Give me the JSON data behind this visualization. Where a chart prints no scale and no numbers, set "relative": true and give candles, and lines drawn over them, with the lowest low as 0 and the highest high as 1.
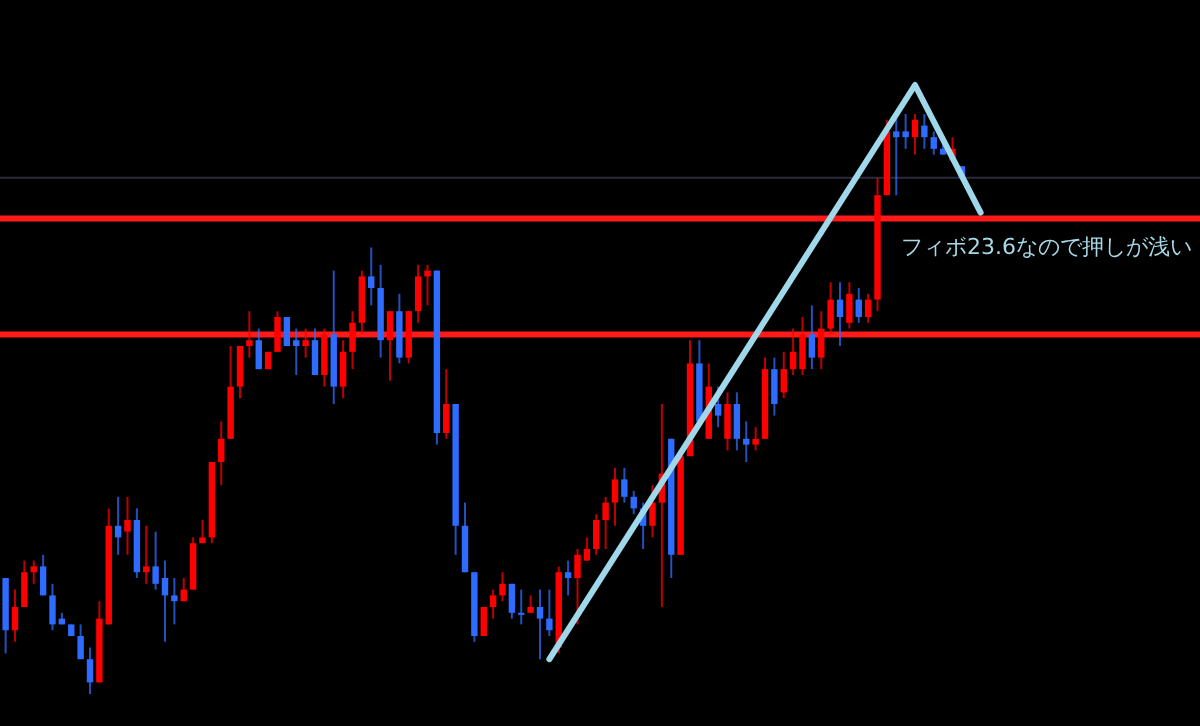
{
  "chart_data": {
    "type": "candlestick",
    "relative": true,
    "categories": [
      null,
      null,
      null,
      null,
      null,
      null,
      null,
      null,
      null,
      null,
      null,
      null,
      null,
      null,
      null,
      null,
      null,
      null,
      null,
      null,
      null,
      null,
      null,
      null,
      null,
      null,
      null,
      null,
      null,
      null,
      null,
      null,
      null,
      null,
      null,
      null,
      null,
      null,
      null,
      null,
      null,
      null,
      null,
      null,
      null,
      null,
      null,
      null,
      null,
      null,
      null,
      null,
      null,
      null,
      null,
      null,
      null,
      null,
      null,
      null,
      null,
      null,
      null,
      null,
      null,
      null,
      null,
      null,
      null,
      null,
      null,
      null,
      null,
      null,
      null,
      null,
      null,
      null,
      null,
      null,
      null,
      null,
      null,
      null,
      null,
      null,
      null,
      null,
      null,
      null,
      null,
      null,
      null,
      null,
      null,
      null,
      null,
      null,
      null,
      null,
      null,
      null,
      null,
      null,
      null,
      null,
      null,
      null,
      null,
      null,
      null,
      null,
      null,
      null,
      null,
      null,
      null,
      null,
      null,
      null,
      null,
      null,
      null,
      null,
      null,
      null,
      null,
      null
    ],
    "ohlc": [
      [
        0.2,
        0.2,
        0.07,
        0.11
      ],
      [
        0.11,
        0.18,
        0.09,
        0.15
      ],
      [
        0.15,
        0.23,
        0.15,
        0.21
      ],
      [
        0.21,
        0.23,
        0.19,
        0.22
      ],
      [
        0.22,
        0.24,
        0.17,
        0.17
      ],
      [
        0.17,
        0.19,
        0.11,
        0.12
      ],
      [
        0.13,
        0.14,
        0.12,
        0.12
      ],
      [
        0.12,
        0.12,
        0.1,
        0.1
      ],
      [
        0.1,
        0.12,
        0.06,
        0.06
      ],
      [
        0.06,
        0.08,
        0,
        0.02
      ],
      [
        0.02,
        0.16,
        0.02,
        0.13
      ],
      [
        0.12,
        0.32,
        0.12,
        0.29
      ],
      [
        0.29,
        0.34,
        0.24,
        0.27
      ],
      [
        0.28,
        0.34,
        0.24,
        0.3
      ],
      [
        0.3,
        0.32,
        0.2,
        0.21
      ],
      [
        0.21,
        0.29,
        0.19,
        0.22
      ],
      [
        0.22,
        0.28,
        0.18,
        0.19
      ],
      [
        0.2,
        0.23,
        0.09,
        0.17
      ],
      [
        0.17,
        0.2,
        0.12,
        0.16
      ],
      [
        0.16,
        0.2,
        0.16,
        0.18
      ],
      [
        0.18,
        0.27,
        0.18,
        0.26
      ],
      [
        0.26,
        0.3,
        0.26,
        0.27
      ],
      [
        0.27,
        0.4,
        0.26,
        0.4
      ],
      [
        0.4,
        0.47,
        0.36,
        0.44
      ],
      [
        0.44,
        0.6,
        0.44,
        0.53
      ],
      [
        0.53,
        0.6,
        0.51,
        0.6
      ],
      [
        0.6,
        0.66,
        0.58,
        0.61
      ],
      [
        0.61,
        0.63,
        0.56,
        0.56
      ],
      [
        0.56,
        0.59,
        0.56,
        0.59
      ],
      [
        0.59,
        0.66,
        0.59,
        0.65
      ],
      [
        0.65,
        0.65,
        0.6,
        0.6
      ],
      [
        0.61,
        0.63,
        0.55,
        0.6
      ],
      [
        0.6,
        0.63,
        0.58,
        0.61
      ],
      [
        0.61,
        0.63,
        0.55,
        0.55
      ],
      [
        0.55,
        0.63,
        0.53,
        0.62
      ],
      [
        0.62,
        0.73,
        0.5,
        0.53
      ],
      [
        0.53,
        0.61,
        0.51,
        0.59
      ],
      [
        0.59,
        0.66,
        0.56,
        0.64
      ],
      [
        0.64,
        0.73,
        0.62,
        0.72
      ],
      [
        0.72,
        0.77,
        0.67,
        0.7
      ],
      [
        0.7,
        0.74,
        0.58,
        0.61
      ],
      [
        0.61,
        0.66,
        0.54,
        0.66
      ],
      [
        0.66,
        0.69,
        0.57,
        0.58
      ],
      [
        0.58,
        0.66,
        0.57,
        0.66
      ],
      [
        0.66,
        0.74,
        0.64,
        0.72
      ],
      [
        0.72,
        0.74,
        0.67,
        0.73
      ],
      [
        0.73,
        0.73,
        0.43,
        0.45
      ],
      [
        0.45,
        0.56,
        0.44,
        0.5
      ],
      [
        0.5,
        0.5,
        0.24,
        0.29
      ],
      [
        0.29,
        0.33,
        0.21,
        0.21
      ],
      [
        0.21,
        0.21,
        0.09,
        0.1
      ],
      [
        0.1,
        0.15,
        0.1,
        0.15
      ],
      [
        0.15,
        0.18,
        0.13,
        0.17
      ],
      [
        0.17,
        0.21,
        0.16,
        0.19
      ],
      [
        0.19,
        0.19,
        0.13,
        0.14
      ],
      [
        0.14,
        0.18,
        0.12,
        0.14
      ],
      [
        0.14,
        0.17,
        0.14,
        0.15
      ],
      [
        0.15,
        0.18,
        0.06,
        0.13
      ],
      [
        0.13,
        0.18,
        0.1,
        0.11
      ],
      [
        0.08,
        0.22,
        0.07,
        0.21
      ],
      [
        0.21,
        0.23,
        0.17,
        0.2
      ],
      [
        0.2,
        0.25,
        0.12,
        0.24
      ],
      [
        0.23,
        0.27,
        0.23,
        0.25
      ],
      [
        0.25,
        0.31,
        0.24,
        0.3
      ],
      [
        0.3,
        0.34,
        0.25,
        0.33
      ],
      [
        0.33,
        0.39,
        0.29,
        0.37
      ],
      [
        0.37,
        0.39,
        0.33,
        0.34
      ],
      [
        0.34,
        0.35,
        0.31,
        0.32
      ],
      [
        0.32,
        0.33,
        0.25,
        0.29
      ],
      [
        0.29,
        0.36,
        0.27,
        0.33
      ],
      [
        0.33,
        0.5,
        0.15,
        0.38
      ],
      [
        0.44,
        0.44,
        0.2,
        0.24
      ],
      [
        0.24,
        0.42,
        0.24,
        0.41
      ],
      [
        0.41,
        0.61,
        0.41,
        0.57
      ],
      [
        0.57,
        0.61,
        0.47,
        0.47
      ],
      [
        0.44,
        0.57,
        0.44,
        0.53
      ],
      [
        0.5,
        0.53,
        0.46,
        0.48
      ],
      [
        0.44,
        0.52,
        0.42,
        0.5
      ],
      [
        0.5,
        0.52,
        0.42,
        0.44
      ],
      [
        0.44,
        0.47,
        0.4,
        0.43
      ],
      [
        0.43,
        0.46,
        0.42,
        0.44
      ],
      [
        0.44,
        0.58,
        0.44,
        0.56
      ],
      [
        0.56,
        0.58,
        0.48,
        0.5
      ],
      [
        0.52,
        0.59,
        0.51,
        0.56
      ],
      [
        0.56,
        0.63,
        0.55,
        0.59
      ],
      [
        0.56,
        0.65,
        0.55,
        0.62
      ],
      [
        0.62,
        0.67,
        0.56,
        0.58
      ],
      [
        0.58,
        0.66,
        0.56,
        0.63
      ],
      [
        0.63,
        0.71,
        0.62,
        0.68
      ],
      [
        0.68,
        0.71,
        0.6,
        0.65
      ],
      [
        0.64,
        0.71,
        0.63,
        0.69
      ],
      [
        0.68,
        0.7,
        0.64,
        0.65
      ],
      [
        0.65,
        0.69,
        0.64,
        0.68
      ],
      [
        0.68,
        0.89,
        0.66,
        0.86
      ],
      [
        0.86,
        0.99,
        0.86,
        0.97
      ],
      [
        0.97,
        1,
        0.86,
        0.96
      ],
      [
        0.97,
        1,
        0.94,
        0.96
      ],
      [
        0.96,
        1,
        0.93,
        0.99
      ],
      [
        0.98,
        1,
        0.94,
        0.96
      ],
      [
        0.96,
        0.97,
        0.93,
        0.94
      ],
      [
        0.94,
        0.95,
        0.93,
        0.93
      ],
      [
        0.92,
        0.96,
        0.92,
        0.94
      ],
      [
        0.91,
        0.91,
        0.89,
        0.89
      ],
      null,
      null,
      null,
      null,
      null,
      null,
      null,
      null,
      null,
      null,
      null,
      null,
      null,
      null,
      null,
      null,
      null,
      null,
      null,
      null,
      null,
      null,
      null,
      null,
      null
    ],
    "colors": [
      "#2d6cff",
      "#ff0000",
      "#ff0000",
      "#ff0000",
      "#2d6cff",
      "#2d6cff",
      "#2d6cff",
      "#2d6cff",
      "#2d6cff",
      "#2d6cff",
      "#ff0000",
      "#ff0000",
      "#2d6cff",
      "#ff0000",
      "#2d6cff",
      "#ff0000",
      "#2d6cff",
      "#2d6cff",
      "#2d6cff",
      "#ff0000",
      "#ff0000",
      "#ff0000",
      "#ff0000",
      "#ff0000",
      "#ff0000",
      "#ff0000",
      "#ff0000",
      "#2d6cff",
      "#ff0000",
      "#ff0000",
      "#2d6cff",
      "#2d6cff",
      "#ff0000",
      "#2d6cff",
      "#ff0000",
      "#2d6cff",
      "#ff0000",
      "#ff0000",
      "#ff0000",
      "#2d6cff",
      "#2d6cff",
      "#ff0000",
      "#2d6cff",
      "#ff0000",
      "#ff0000",
      "#ff0000",
      "#2d6cff",
      "#ff0000",
      "#2d6cff",
      "#2d6cff",
      "#2d6cff",
      "#ff0000",
      "#ff0000",
      "#ff0000",
      "#2d6cff",
      "#2d6cff",
      "#ff0000",
      "#2d6cff",
      "#2d6cff",
      "#ff0000",
      "#2d6cff",
      "#ff0000",
      "#ff0000",
      "#ff0000",
      "#ff0000",
      "#ff0000",
      "#2d6cff",
      "#2d6cff",
      "#2d6cff",
      "#ff0000",
      "#ff0000",
      "#2d6cff",
      "#ff0000",
      "#ff0000",
      "#2d6cff",
      "#ff0000",
      "#2d6cff",
      "#ff0000",
      "#2d6cff",
      "#2d6cff",
      "#ff0000",
      "#ff0000",
      "#2d6cff",
      "#ff0000",
      "#ff0000",
      "#ff0000",
      "#2d6cff",
      "#ff0000",
      "#ff0000",
      "#2d6cff",
      "#ff0000",
      "#2d6cff",
      "#ff0000",
      "#ff0000",
      "#ff0000",
      "#2d6cff",
      "#2d6cff",
      "#ff0000",
      "#2d6cff",
      "#2d6cff",
      "#2d6cff",
      "#ff0000",
      "#2d6cff",
      null,
      null,
      null,
      null,
      null,
      null,
      null,
      null,
      null,
      null,
      null,
      null,
      null,
      null,
      null,
      null,
      null,
      null,
      null,
      null,
      null,
      null,
      null,
      null,
      null
    ],
    "series": [
      {
        "type": "line",
        "color": "#9ed8ea",
        "values": [
          null,
          null,
          null,
          null,
          null,
          null,
          null,
          null,
          null,
          null,
          null,
          null,
          null,
          null,
          null,
          null,
          null,
          null,
          null,
          null,
          null,
          null,
          null,
          null,
          null,
          null,
          null,
          null,
          null,
          null,
          null,
          null,
          null,
          null,
          null,
          null,
          null,
          null,
          null,
          null,
          null,
          null,
          null,
          null,
          null,
          null,
          null,
          null,
          null,
          null,
          null,
          null,
          null,
          null,
          null,
          null,
          null,
          null,
          0.06,
          null,
          null,
          null,
          null,
          null,
          null,
          null,
          null,
          null,
          null,
          null,
          null,
          null,
          null,
          null,
          null,
          null,
          null,
          null,
          null,
          null,
          null,
          null,
          null,
          null,
          null,
          null,
          null,
          null,
          null,
          null,
          null,
          null,
          null,
          null,
          null,
          null,
          null,
          1.05,
          null,
          null,
          null,
          null,
          null,
          null,
          0.83,
          null,
          null,
          null,
          null,
          null,
          null,
          null,
          null,
          null,
          null,
          null,
          null,
          null,
          null,
          null,
          null,
          null,
          null,
          null,
          null,
          null,
          null,
          null
        ]
      }
    ],
    "ref_lines": [
      {
        "axis": "y",
        "value": 0.82,
        "color": "#ff1a1a"
      },
      {
        "axis": "y",
        "value": 0.62,
        "color": "#ff1a1a"
      },
      {
        "axis": "y",
        "value": 0.89,
        "color": "#2b2b3c"
      }
    ],
    "annotations": [
      "フィボ23.6なので押しが浅い"
    ]
  }
}
